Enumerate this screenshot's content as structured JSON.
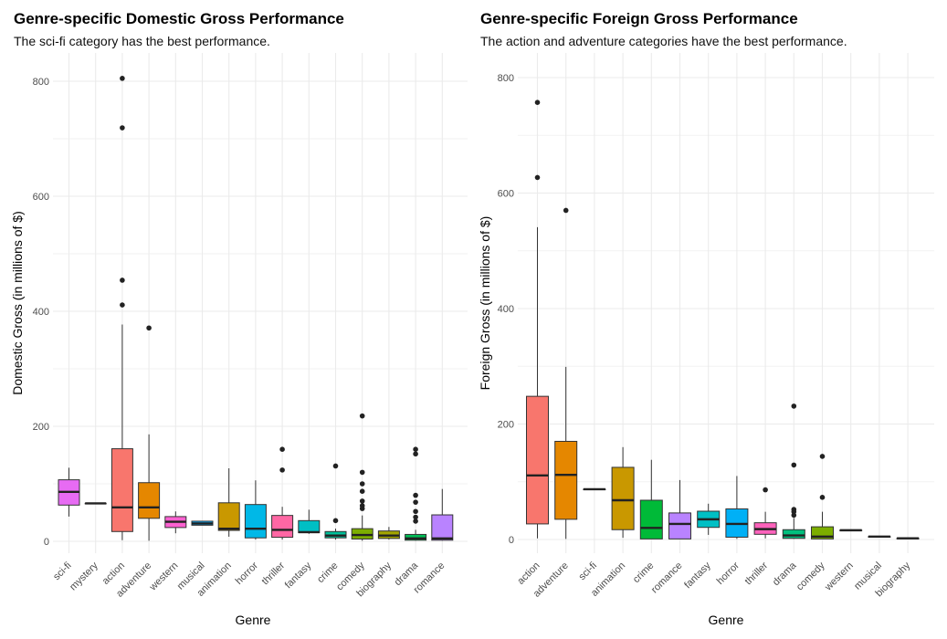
{
  "chart_data": [
    {
      "type": "box",
      "title": "Genre-specific Domestic Gross Performance",
      "subtitle": "The sci-fi category has the best performance.",
      "xlabel": "Genre",
      "ylabel": "Domestic Gross (in millions of $)",
      "ylim": [
        -20,
        840
      ],
      "yticks": [
        0,
        200,
        400,
        600,
        800
      ],
      "grid": true,
      "legend": "none",
      "categories": [
        "sci-fi",
        "mystery",
        "action",
        "adventure",
        "western",
        "musical",
        "animation",
        "horror",
        "thriller",
        "fantasy",
        "crime",
        "comedy",
        "biography",
        "drama",
        "romance"
      ],
      "boxes": [
        {
          "category": "sci-fi",
          "color": "#E76BF3",
          "min": 43,
          "q1": 63,
          "median": 86,
          "q3": 107,
          "max": 128,
          "outliers": []
        },
        {
          "category": "mystery",
          "color": "#FF61C3",
          "min": 66,
          "q1": 66,
          "median": 66,
          "q3": 66,
          "max": 66,
          "outliers": []
        },
        {
          "category": "action",
          "color": "#F8766D",
          "min": 2,
          "q1": 17,
          "median": 59,
          "q3": 161,
          "max": 377,
          "outliers": [
            411,
            454,
            719,
            805
          ]
        },
        {
          "category": "adventure",
          "color": "#E58700",
          "min": 1,
          "q1": 40,
          "median": 59,
          "q3": 102,
          "max": 186,
          "outliers": [
            371
          ]
        },
        {
          "category": "western",
          "color": "#FD61D1",
          "min": 14,
          "q1": 24,
          "median": 34,
          "q3": 43,
          "max": 52,
          "outliers": []
        },
        {
          "category": "musical",
          "color": "#00A9FF",
          "min": 28,
          "q1": 28,
          "median": 31,
          "q3": 35,
          "max": 35,
          "outliers": []
        },
        {
          "category": "animation",
          "color": "#C99800",
          "min": 8,
          "q1": 19,
          "median": 22,
          "q3": 67,
          "max": 127,
          "outliers": []
        },
        {
          "category": "horror",
          "color": "#00B8E7",
          "min": 3,
          "q1": 6,
          "median": 22,
          "q3": 64,
          "max": 106,
          "outliers": []
        },
        {
          "category": "thriller",
          "color": "#FF67A4",
          "min": 3,
          "q1": 7,
          "median": 20,
          "q3": 45,
          "max": 60,
          "outliers": [
            124,
            160
          ]
        },
        {
          "category": "fantasy",
          "color": "#00BFC4",
          "min": 13,
          "q1": 15,
          "median": 16,
          "q3": 36,
          "max": 55,
          "outliers": []
        },
        {
          "category": "crime",
          "color": "#00C19A",
          "min": 3,
          "q1": 6,
          "median": 10,
          "q3": 17,
          "max": 22,
          "outliers": [
            36,
            131
          ]
        },
        {
          "category": "comedy",
          "color": "#7CAE00",
          "min": 1,
          "q1": 4,
          "median": 11,
          "q3": 22,
          "max": 45,
          "outliers": [
            57,
            62,
            70,
            87,
            100,
            120,
            218
          ]
        },
        {
          "category": "biography",
          "color": "#A3A500",
          "min": 3,
          "q1": 5,
          "median": 10,
          "q3": 18,
          "max": 25,
          "outliers": []
        },
        {
          "category": "drama",
          "color": "#00BC56",
          "min": 1,
          "q1": 2,
          "median": 5,
          "q3": 12,
          "max": 20,
          "outliers": [
            35,
            42,
            52,
            68,
            80,
            152,
            160
          ]
        },
        {
          "category": "romance",
          "color": "#B983FF",
          "min": 1,
          "q1": 2,
          "median": 5,
          "q3": 46,
          "max": 91,
          "outliers": []
        }
      ]
    },
    {
      "type": "box",
      "title": "Genre-specific Foreign Gross Performance",
      "subtitle": "The action and adventure categories have the best performance.",
      "xlabel": "Genre",
      "ylabel": "Foreign Gross (in millions of $)",
      "ylim": [
        -20,
        810
      ],
      "yticks": [
        0,
        200,
        400,
        600,
        800
      ],
      "grid": true,
      "legend": "none",
      "categories": [
        "action",
        "adventure",
        "sci-fi",
        "animation",
        "crime",
        "romance",
        "fantasy",
        "horror",
        "thriller",
        "drama",
        "comedy",
        "western",
        "musical",
        "biography"
      ],
      "boxes": [
        {
          "category": "action",
          "color": "#F8766D",
          "min": 2,
          "q1": 27,
          "median": 111,
          "q3": 248,
          "max": 541,
          "outliers": [
            627,
            757
          ]
        },
        {
          "category": "adventure",
          "color": "#E58700",
          "min": 1,
          "q1": 35,
          "median": 112,
          "q3": 170,
          "max": 299,
          "outliers": [
            570
          ]
        },
        {
          "category": "sci-fi",
          "color": "#E76BF3",
          "min": 87,
          "q1": 87,
          "median": 87,
          "q3": 87,
          "max": 87,
          "outliers": []
        },
        {
          "category": "animation",
          "color": "#C99800",
          "min": 3,
          "q1": 17,
          "median": 68,
          "q3": 125,
          "max": 160,
          "outliers": []
        },
        {
          "category": "crime",
          "color": "#00BA38",
          "min": 1,
          "q1": 1,
          "median": 20,
          "q3": 68,
          "max": 138,
          "outliers": []
        },
        {
          "category": "romance",
          "color": "#B983FF",
          "min": 1,
          "q1": 1,
          "median": 27,
          "q3": 46,
          "max": 103,
          "outliers": []
        },
        {
          "category": "fantasy",
          "color": "#00BFC4",
          "min": 8,
          "q1": 21,
          "median": 35,
          "q3": 49,
          "max": 62,
          "outliers": []
        },
        {
          "category": "horror",
          "color": "#00B0F6",
          "min": 1,
          "q1": 4,
          "median": 27,
          "q3": 53,
          "max": 110,
          "outliers": []
        },
        {
          "category": "thriller",
          "color": "#FF62BC",
          "min": 2,
          "q1": 9,
          "median": 18,
          "q3": 29,
          "max": 48,
          "outliers": [
            86
          ]
        },
        {
          "category": "drama",
          "color": "#00BF7D",
          "min": 1,
          "q1": 2,
          "median": 7,
          "q3": 17,
          "max": 37,
          "outliers": [
            42,
            48,
            52,
            129,
            231
          ]
        },
        {
          "category": "comedy",
          "color": "#7CAE00",
          "min": 1,
          "q1": 1,
          "median": 5,
          "q3": 22,
          "max": 48,
          "outliers": [
            73,
            144
          ]
        },
        {
          "category": "western",
          "color": "#619CFF",
          "min": 16,
          "q1": 16,
          "median": 16,
          "q3": 16,
          "max": 16,
          "outliers": []
        },
        {
          "category": "musical",
          "color": "#00A9FF",
          "min": 5,
          "q1": 5,
          "median": 5,
          "q3": 5,
          "max": 5,
          "outliers": []
        },
        {
          "category": "biography",
          "color": "#A3A500",
          "min": 2,
          "q1": 2,
          "median": 2,
          "q3": 2,
          "max": 2,
          "outliers": []
        }
      ]
    }
  ]
}
